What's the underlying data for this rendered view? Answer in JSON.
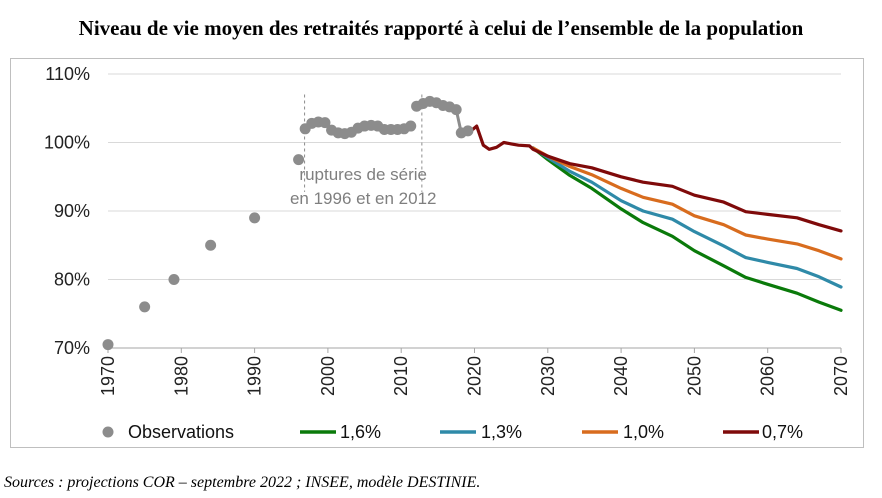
{
  "chart_data": {
    "type": "line",
    "title": "Niveau de vie moyen des retraités rapporté à celui de l’ensemble de la population",
    "source": "Sources : projections COR – septembre 2022 ; INSEE, modèle DESTINIE.",
    "xlabel": "",
    "ylabel": "",
    "xlim": [
      1970,
      2070
    ],
    "ylim": [
      70,
      110
    ],
    "x_ticks": [
      "1970",
      "1980",
      "1990",
      "2000",
      "2010",
      "2020",
      "2030",
      "2040",
      "2050",
      "2060",
      "2070"
    ],
    "y_ticks": [
      "70%",
      "80%",
      "90%",
      "100%",
      "110%"
    ],
    "grid": true,
    "legend_position": "bottom",
    "annotations": [
      {
        "text_lines": [
          "ruptures de série",
          "en 1996 et en 2012"
        ],
        "x": 2004,
        "y": 94.5
      }
    ],
    "series_breaks": [
      1996,
      2012
    ],
    "series": [
      {
        "name": "Observations",
        "kind": "scatter",
        "color": "#8c8c8c",
        "points": [
          [
            1970,
            70.5
          ],
          [
            1975,
            76.0
          ],
          [
            1979,
            80.0
          ],
          [
            1984,
            85.0
          ],
          [
            1990,
            89.0
          ],
          [
            1996,
            97.5
          ],
          [
            1996.9,
            102.0
          ],
          [
            1997.8,
            102.8
          ],
          [
            1998.7,
            103.0
          ],
          [
            1999.6,
            102.9
          ],
          [
            2000.5,
            101.8
          ],
          [
            2001.4,
            101.4
          ],
          [
            2002.3,
            101.3
          ],
          [
            2003.2,
            101.5
          ],
          [
            2004.1,
            102.1
          ],
          [
            2005.0,
            102.4
          ],
          [
            2005.9,
            102.5
          ],
          [
            2006.8,
            102.4
          ],
          [
            2007.7,
            101.9
          ],
          [
            2008.6,
            101.9
          ],
          [
            2009.5,
            101.9
          ],
          [
            2010.4,
            102.0
          ],
          [
            2011.3,
            102.4
          ],
          [
            2012.1,
            105.3
          ],
          [
            2013.0,
            105.7
          ],
          [
            2013.9,
            106.0
          ],
          [
            2014.8,
            105.8
          ],
          [
            2015.7,
            105.4
          ],
          [
            2016.6,
            105.2
          ],
          [
            2017.5,
            104.8
          ],
          [
            2018.2,
            101.4
          ],
          [
            2019.1,
            101.7
          ]
        ]
      },
      {
        "name": "1,6%",
        "color": "#0a7a0a",
        "x": [
          2028,
          2030,
          2033,
          2036,
          2040,
          2043,
          2047,
          2050,
          2054,
          2057,
          2060,
          2064,
          2067,
          2070
        ],
        "values": [
          99.2,
          97.5,
          95.2,
          93.3,
          90.3,
          88.3,
          86.3,
          84.2,
          82.0,
          80.3,
          79.3,
          78.0,
          76.7,
          75.5
        ]
      },
      {
        "name": "1,3%",
        "color": "#2f8aa8",
        "x": [
          2028,
          2030,
          2033,
          2036,
          2040,
          2043,
          2047,
          2050,
          2054,
          2057,
          2060,
          2064,
          2067,
          2070
        ],
        "values": [
          99.2,
          97.8,
          95.8,
          94.2,
          91.5,
          90.0,
          88.8,
          87.0,
          84.9,
          83.2,
          82.5,
          81.6,
          80.4,
          78.9
        ]
      },
      {
        "name": "1,0%",
        "color": "#d86c1e",
        "x": [
          2028,
          2030,
          2033,
          2036,
          2040,
          2043,
          2047,
          2050,
          2054,
          2057,
          2060,
          2064,
          2067,
          2070
        ],
        "values": [
          99.2,
          98.0,
          96.5,
          95.3,
          93.3,
          92.0,
          91.0,
          89.3,
          88.0,
          86.5,
          85.9,
          85.2,
          84.2,
          83.0
        ]
      },
      {
        "name": "0,7%",
        "color": "#7f0a0a",
        "x": [
          2019.3,
          2020.3,
          2021.2,
          2022,
          2023,
          2024,
          2025,
          2026,
          2027.5,
          2028,
          2030,
          2033,
          2036,
          2040,
          2043,
          2047,
          2050,
          2054,
          2057,
          2060,
          2064,
          2067,
          2070
        ],
        "values": [
          101.5,
          102.4,
          99.6,
          99.0,
          99.3,
          100.0,
          99.8,
          99.6,
          99.5,
          99.0,
          98.0,
          96.9,
          96.3,
          95.0,
          94.2,
          93.6,
          92.3,
          91.3,
          89.9,
          89.5,
          89.0,
          88.0,
          87.1
        ]
      }
    ]
  }
}
